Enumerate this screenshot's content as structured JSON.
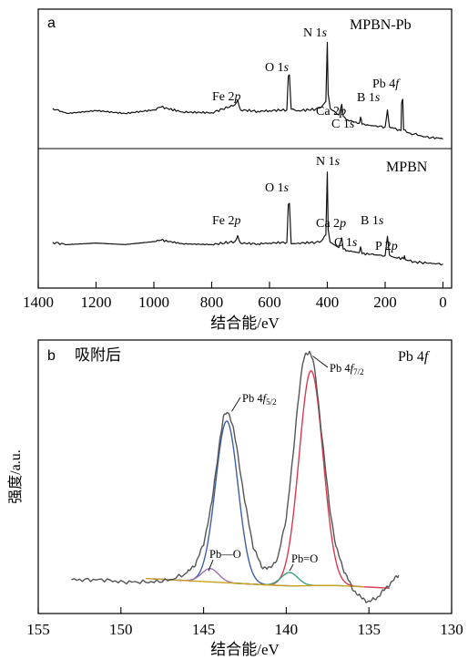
{
  "chart_data": [
    {
      "type": "line",
      "panel": "a",
      "xlabel": "结合能/eV",
      "xlim": [
        1400,
        -30
      ],
      "xticks": [
        1400,
        1200,
        1000,
        800,
        600,
        400,
        200,
        0
      ],
      "series": [
        {
          "name": "MPBN-Pb",
          "x": [
            1350,
            1300,
            1200,
            1100,
            1000,
            975,
            900,
            800,
            720,
            710,
            700,
            640,
            600,
            540,
            535,
            531,
            525,
            500,
            440,
            420,
            405,
            400,
            397,
            390,
            360,
            350,
            345,
            330,
            290,
            285,
            280,
            250,
            200,
            192,
            185,
            170,
            145,
            143,
            139,
            136,
            120,
            100,
            80,
            60,
            40,
            10,
            0
          ],
          "y": [
            50,
            43,
            47,
            43,
            48,
            52,
            45,
            44,
            55,
            62,
            48,
            46,
            47,
            48,
            95,
            97,
            49,
            47,
            49,
            52,
            60,
            143,
            70,
            50,
            41,
            56,
            39,
            34,
            29,
            38,
            28,
            26,
            24,
            48,
            24,
            22,
            19,
            57,
            63,
            20,
            16,
            14,
            12,
            10,
            9,
            8,
            7
          ]
        },
        {
          "name": "MPBN",
          "x": [
            1350,
            1300,
            1200,
            1100,
            1000,
            975,
            900,
            800,
            720,
            710,
            700,
            640,
            600,
            540,
            535,
            531,
            525,
            500,
            440,
            420,
            405,
            400,
            397,
            390,
            360,
            350,
            345,
            330,
            290,
            285,
            280,
            250,
            200,
            192,
            185,
            170,
            135,
            133,
            130,
            100,
            50,
            0
          ],
          "y": [
            38,
            35,
            37,
            35,
            39,
            41,
            36,
            35,
            39,
            47,
            37,
            36,
            37,
            38,
            88,
            90,
            36,
            37,
            38,
            40,
            48,
            132,
            55,
            38,
            31,
            44,
            29,
            27,
            24,
            32,
            23,
            22,
            20,
            46,
            21,
            18,
            16,
            20,
            15,
            12,
            10,
            9
          ]
        }
      ],
      "annotations": [
        "O 1s",
        "N 1s",
        "Fe 2p",
        "Ca 2p",
        "C 1s",
        "B 1s",
        "Pb 4f",
        "P 2p"
      ]
    },
    {
      "type": "line",
      "panel": "b",
      "title": "Pb 4f",
      "xlabel": "结合能/eV",
      "ylabel": "强度/a.u.",
      "xlim": [
        155,
        130
      ],
      "xticks": [
        155,
        150,
        145,
        140,
        135,
        130
      ],
      "series": [
        {
          "name": "measured",
          "color": "#555555",
          "x": [
            153.0,
            152.0,
            151.0,
            150.0,
            149.0,
            148.0,
            147.0,
            146.0,
            145.5,
            145.0,
            144.5,
            144.0,
            143.8,
            143.6,
            143.4,
            143.2,
            143.0,
            142.5,
            142.0,
            141.5,
            141.0,
            140.5,
            140.0,
            139.6,
            139.3,
            139.0,
            138.8,
            138.6,
            138.4,
            138.2,
            138.0,
            137.7,
            137.4,
            137.0,
            136.5,
            136.0,
            135.5,
            135.0,
            134.5,
            134.0,
            133.5,
            133.2
          ],
          "y": [
            0.0,
            0.0,
            0.0,
            -0.01,
            -0.01,
            -0.01,
            0.0,
            0.03,
            0.07,
            0.16,
            0.35,
            0.64,
            0.73,
            0.76,
            0.74,
            0.68,
            0.6,
            0.35,
            0.15,
            0.06,
            0.05,
            0.1,
            0.28,
            0.55,
            0.8,
            0.98,
            1.02,
            1.03,
            1.0,
            0.9,
            0.76,
            0.55,
            0.34,
            0.15,
            0.04,
            -0.04,
            -0.08,
            -0.1,
            -0.08,
            -0.04,
            0.0,
            0.02
          ]
        },
        {
          "name": "Pb 4f5/2",
          "color": "#3f5fa5",
          "center": 143.6,
          "height": 0.73,
          "fwhm": 1.6
        },
        {
          "name": "Pb 4f7/2",
          "color": "#d83a50",
          "center": 138.5,
          "height": 0.97,
          "fwhm": 1.7
        },
        {
          "name": "Pb—O",
          "color": "#a070b8",
          "center": 144.6,
          "height": 0.06,
          "fwhm": 1.2
        },
        {
          "name": "Pb=O",
          "color": "#3aa07a",
          "center": 139.8,
          "height": 0.06,
          "fwhm": 1.2
        },
        {
          "name": "background",
          "color": "#c9a224"
        }
      ]
    }
  ],
  "panel_a": {
    "letter": "a",
    "top_label": "MPBN-Pb",
    "bottom_label": "MPBN",
    "xlabel": "结合能/eV",
    "peaks_top": {
      "o1s": "O 1s",
      "n1s": "N 1s",
      "fe2p": "Fe 2p",
      "ca2p": "Ca 2p",
      "c1s": "C 1s",
      "b1s": "B 1s",
      "pb4f": "Pb 4f"
    },
    "peaks_bottom": {
      "o1s": "O 1s",
      "n1s": "N 1s",
      "fe2p": "Fe 2p",
      "ca2p": "Ca 2p",
      "c1s": "C 1s",
      "b1s": "B 1s",
      "p2p": "P 2p"
    }
  },
  "panel_b": {
    "letter": "b",
    "subtitle": "吸附后",
    "title": "Pb 4f",
    "ylabel": "强度/a.u.",
    "xlabel": "结合能/eV",
    "peak1": "Pb 4f5/2",
    "peak2": "Pb 4f7/2",
    "pbo_single": "Pb—O",
    "pbo_double": "Pb=O"
  }
}
